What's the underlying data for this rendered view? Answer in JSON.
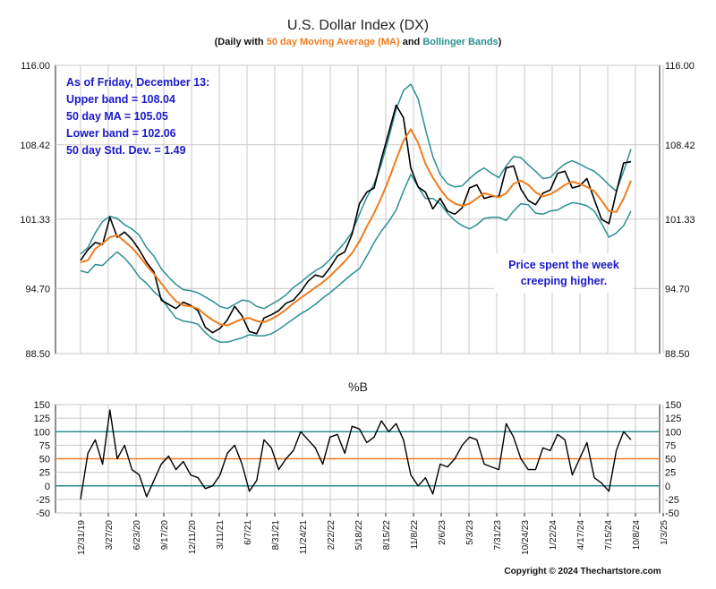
{
  "title": "U.S. Dollar Index (DX)",
  "subtitle": {
    "part1": "(Daily with ",
    "ma": "50 day Moving Average (MA)",
    "and": " and ",
    "bb": "Bollinger Bands",
    "part2": ")"
  },
  "annotation_lines": [
    "As of Friday, December 13:",
    "Upper band = 108.04",
    "50 day MA = 105.05",
    "Lower band = 102.06",
    "50 day Std. Dev. = 1.49"
  ],
  "note_lines": [
    "Price spent the week",
    "creeping higher."
  ],
  "copyright": "Copyright © 2024 Thechartstore.com",
  "colors": {
    "price": "#000000",
    "ma": "#f07c1e",
    "bands": "#2a8f8f",
    "annotation": "#1a1acc",
    "grid": "#c8c8c8",
    "ref_teal": "#2a8f8f",
    "ref_orange": "#f07c1e"
  },
  "chart_data": [
    {
      "type": "line",
      "title": "U.S. Dollar Index (DX)",
      "ylim": [
        88.5,
        116.0
      ],
      "y_ticks": [
        "116.00",
        "108.42",
        "101.33",
        "94.70",
        "88.50"
      ],
      "x_tick_labels": [
        "12/31/19",
        "3/27/20",
        "6/23/20",
        "9/17/20",
        "12/11/20",
        "3/11/21",
        "6/7/21",
        "8/31/21",
        "11/24/21",
        "2/22/22",
        "5/18/22",
        "8/15/22",
        "11/8/22",
        "2/6/23",
        "5/3/23",
        "7/31/23",
        "10/24/23",
        "1/22/24",
        "4/17/24",
        "7/15/24",
        "10/8/24",
        "1/3/25"
      ],
      "series": [
        {
          "name": "Price",
          "values": [
            97.4,
            98.4,
            99.1,
            98.9,
            101.5,
            99.6,
            100.1,
            99.4,
            98.4,
            97.2,
            96.3,
            93.6,
            93.2,
            92.8,
            93.4,
            93.1,
            92.6,
            91.0,
            90.5,
            90.9,
            91.7,
            93.0,
            92.1,
            90.6,
            90.4,
            91.9,
            92.2,
            92.6,
            93.3,
            93.6,
            94.4,
            95.4,
            96.0,
            95.8,
            96.7,
            97.8,
            98.2,
            99.9,
            102.8,
            103.9,
            104.3,
            107.1,
            109.6,
            112.2,
            111.0,
            106.2,
            104.4,
            103.9,
            102.3,
            103.3,
            102.1,
            101.8,
            102.4,
            104.3,
            104.6,
            103.3,
            103.5,
            103.5,
            106.2,
            106.4,
            104.2,
            103.1,
            102.7,
            103.8,
            104.1,
            105.7,
            105.9,
            104.3,
            104.5,
            105.2,
            103.2,
            101.3,
            100.9,
            103.9,
            106.7,
            106.8
          ]
        },
        {
          "name": "50 day MA",
          "values": [
            97.2,
            97.4,
            98.5,
            99.0,
            99.6,
            99.8,
            99.2,
            98.6,
            97.8,
            96.9,
            96.1,
            95.2,
            94.3,
            93.5,
            93.1,
            93.0,
            92.8,
            92.2,
            91.7,
            91.3,
            91.2,
            91.5,
            91.8,
            91.9,
            91.6,
            91.5,
            91.8,
            92.2,
            92.7,
            93.3,
            93.8,
            94.3,
            94.8,
            95.3,
            95.9,
            96.6,
            97.3,
            98.1,
            99.2,
            100.6,
            101.9,
            103.4,
            105.1,
            107.0,
            108.8,
            109.9,
            108.6,
            106.6,
            105.3,
            104.2,
            103.3,
            102.8,
            102.6,
            102.8,
            103.3,
            103.8,
            103.6,
            103.4,
            103.8,
            104.7,
            105.0,
            104.6,
            103.9,
            103.5,
            103.7,
            104.1,
            104.6,
            104.9,
            104.7,
            104.4,
            104.0,
            103.1,
            102.1,
            102.0,
            103.3,
            105.0
          ]
        },
        {
          "name": "Upper band",
          "values": [
            98.0,
            98.6,
            100.0,
            101.1,
            101.6,
            101.4,
            100.8,
            100.4,
            99.8,
            98.6,
            97.8,
            96.6,
            95.8,
            95.1,
            94.6,
            94.5,
            94.3,
            93.9,
            93.5,
            93.0,
            92.8,
            93.2,
            93.6,
            93.5,
            93.0,
            92.8,
            93.2,
            93.6,
            94.1,
            94.8,
            95.3,
            95.9,
            96.4,
            96.8,
            97.5,
            98.3,
            99.1,
            100.1,
            101.8,
            103.4,
            104.7,
            106.6,
            109.1,
            111.8,
            113.6,
            114.2,
            112.8,
            109.9,
            107.3,
            105.6,
            104.7,
            104.4,
            104.5,
            105.2,
            105.8,
            106.2,
            105.7,
            105.3,
            106.4,
            107.3,
            107.2,
            106.5,
            105.9,
            105.2,
            105.3,
            106.0,
            106.6,
            106.9,
            106.6,
            106.2,
            105.9,
            105.3,
            104.6,
            104.0,
            105.9,
            108.0
          ]
        },
        {
          "name": "Lower band",
          "values": [
            96.4,
            96.2,
            97.0,
            96.9,
            97.6,
            98.2,
            97.6,
            96.8,
            95.8,
            95.2,
            94.4,
            93.8,
            92.8,
            91.9,
            91.6,
            91.5,
            91.3,
            90.5,
            89.9,
            89.6,
            89.6,
            89.8,
            90.0,
            90.3,
            90.2,
            90.2,
            90.4,
            90.8,
            91.3,
            91.8,
            92.3,
            92.7,
            93.2,
            93.8,
            94.3,
            94.9,
            95.5,
            96.1,
            96.6,
            97.8,
            99.1,
            100.2,
            101.1,
            102.2,
            104.0,
            105.6,
            104.4,
            103.3,
            103.3,
            102.8,
            101.9,
            101.2,
            100.7,
            100.4,
            100.8,
            101.4,
            101.5,
            101.5,
            101.2,
            102.1,
            102.8,
            102.7,
            101.9,
            101.8,
            102.1,
            102.2,
            102.6,
            102.9,
            102.8,
            102.6,
            102.1,
            100.9,
            99.6,
            100.0,
            100.7,
            102.1
          ]
        }
      ],
      "annotation": [
        "As of Friday, December 13:",
        "Upper band = 108.04",
        "50 day MA = 105.05",
        "Lower band = 102.06",
        "50 day Std. Dev. = 1.49"
      ],
      "grid": true
    },
    {
      "type": "line",
      "title": "%B",
      "ylim": [
        -50,
        150
      ],
      "y_ticks": [
        "150",
        "125",
        "100",
        "75",
        "50",
        "25",
        "0",
        "-25",
        "-50"
      ],
      "reference_lines": [
        100,
        50,
        0
      ],
      "series": [
        {
          "name": "%B",
          "values": [
            -25,
            60,
            85,
            40,
            140,
            50,
            75,
            30,
            20,
            -20,
            10,
            40,
            55,
            30,
            45,
            20,
            15,
            -5,
            0,
            20,
            60,
            75,
            40,
            -10,
            10,
            85,
            70,
            30,
            50,
            65,
            100,
            85,
            70,
            40,
            90,
            95,
            60,
            110,
            105,
            80,
            90,
            120,
            100,
            115,
            85,
            20,
            0,
            15,
            -15,
            40,
            35,
            50,
            75,
            90,
            85,
            40,
            35,
            30,
            115,
            90,
            50,
            30,
            30,
            70,
            65,
            95,
            85,
            20,
            50,
            80,
            15,
            5,
            -10,
            65,
            100,
            85
          ]
        }
      ],
      "grid": true
    }
  ]
}
